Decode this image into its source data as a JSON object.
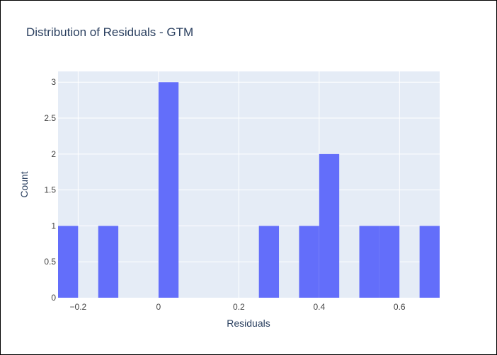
{
  "chart_data": {
    "type": "bar",
    "title": "Distribution of Residuals - GTM",
    "xlabel": "Residuals",
    "ylabel": "Count",
    "bin_width": 0.05,
    "bins": [
      {
        "start": -0.25,
        "end": -0.2,
        "count": 1
      },
      {
        "start": -0.2,
        "end": -0.15,
        "count": 0
      },
      {
        "start": -0.15,
        "end": -0.1,
        "count": 1
      },
      {
        "start": -0.1,
        "end": -0.05,
        "count": 0
      },
      {
        "start": -0.05,
        "end": 0.0,
        "count": 0
      },
      {
        "start": 0.0,
        "end": 0.05,
        "count": 3
      },
      {
        "start": 0.05,
        "end": 0.1,
        "count": 0
      },
      {
        "start": 0.1,
        "end": 0.15,
        "count": 0
      },
      {
        "start": 0.15,
        "end": 0.2,
        "count": 0
      },
      {
        "start": 0.2,
        "end": 0.25,
        "count": 0
      },
      {
        "start": 0.25,
        "end": 0.3,
        "count": 1
      },
      {
        "start": 0.3,
        "end": 0.35,
        "count": 0
      },
      {
        "start": 0.35,
        "end": 0.4,
        "count": 1
      },
      {
        "start": 0.4,
        "end": 0.45,
        "count": 2
      },
      {
        "start": 0.45,
        "end": 0.5,
        "count": 0
      },
      {
        "start": 0.5,
        "end": 0.55,
        "count": 1
      },
      {
        "start": 0.55,
        "end": 0.6,
        "count": 1
      },
      {
        "start": 0.6,
        "end": 0.65,
        "count": 0
      },
      {
        "start": 0.65,
        "end": 0.7,
        "count": 1
      }
    ],
    "xlim": [
      -0.25,
      0.7
    ],
    "ylim": [
      0,
      3.15
    ],
    "x_ticks": [
      -0.2,
      0,
      0.2,
      0.4,
      0.6
    ],
    "x_tick_labels": [
      "−0.2",
      "0",
      "0.2",
      "0.4",
      "0.6"
    ],
    "y_ticks": [
      0,
      0.5,
      1,
      1.5,
      2,
      2.5,
      3
    ],
    "y_tick_labels": [
      "0",
      "0.5",
      "1",
      "1.5",
      "2",
      "2.5",
      "3"
    ],
    "grid": true,
    "legend": "none",
    "colors": {
      "bar": "#636efa",
      "plot_background": "#e5ecf6",
      "grid": "#ffffff",
      "text": "#2a3f5f",
      "tick_text": "#444444"
    }
  }
}
